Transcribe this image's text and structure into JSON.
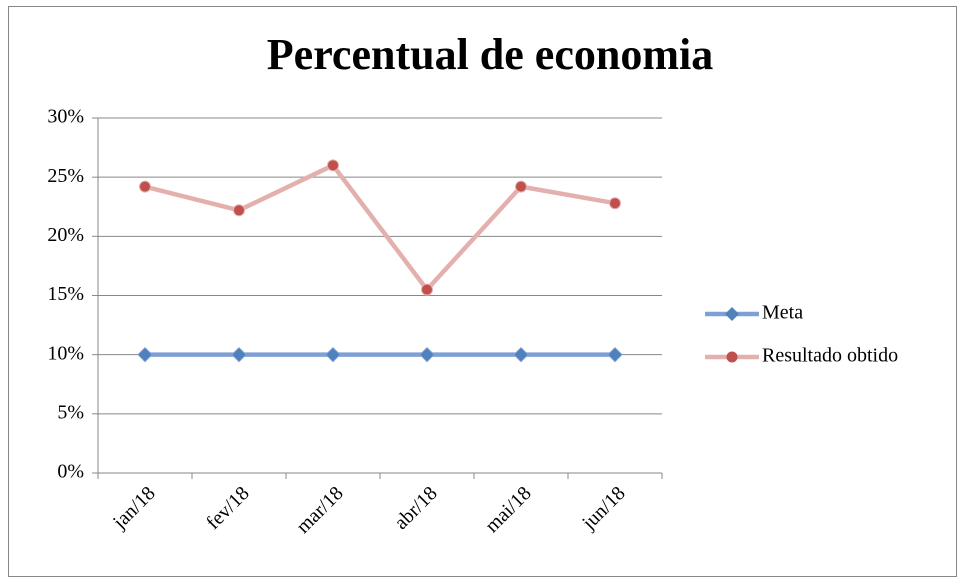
{
  "chart_data": {
    "type": "line",
    "title": "Percentual de economia",
    "categories": [
      "jan/18",
      "fev/18",
      "mar/18",
      "abr/18",
      "mai/18",
      "jun/18"
    ],
    "series": [
      {
        "name": "Meta",
        "color": "#4f81bd",
        "line_color": "#7fa0d4",
        "marker": "diamond",
        "values": [
          10,
          10,
          10,
          10,
          10,
          10
        ]
      },
      {
        "name": "Resultado obtido",
        "color": "#c0504d",
        "line_color": "#e4b0ae",
        "marker": "circle",
        "values": [
          24.2,
          22.2,
          26,
          15.5,
          24.2,
          22.8
        ]
      }
    ],
    "ylim": [
      0,
      30
    ],
    "yticks": [
      {
        "value": 0,
        "label": "0%"
      },
      {
        "value": 5,
        "label": "5%"
      },
      {
        "value": 10,
        "label": "10%"
      },
      {
        "value": 15,
        "label": "15%"
      },
      {
        "value": 20,
        "label": "20%"
      },
      {
        "value": 25,
        "label": "25%"
      },
      {
        "value": 30,
        "label": "30%"
      }
    ],
    "grid": true,
    "legend": "right"
  }
}
